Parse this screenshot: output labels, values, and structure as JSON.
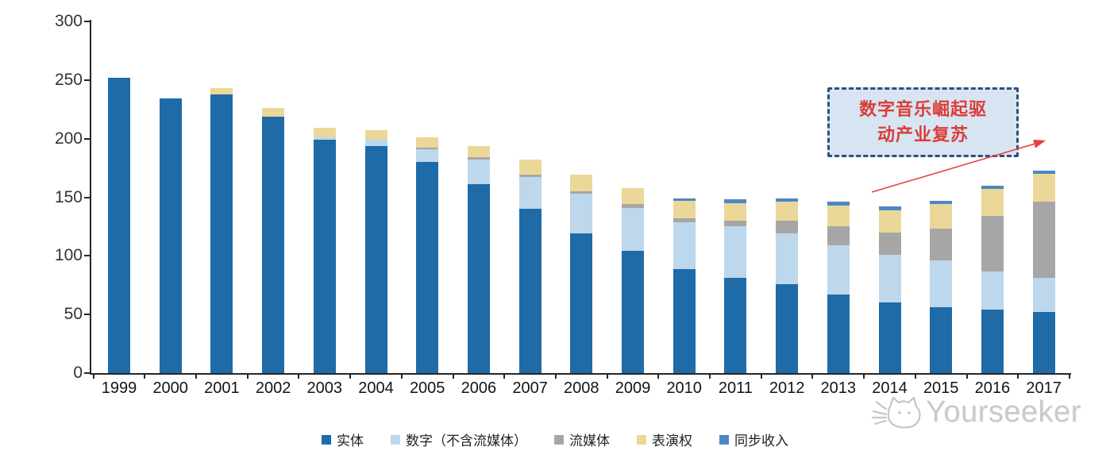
{
  "chart_data": {
    "type": "bar",
    "stacked": true,
    "title": "",
    "xlabel": "",
    "ylabel": "",
    "categories": [
      "1999",
      "2000",
      "2001",
      "2002",
      "2003",
      "2004",
      "2005",
      "2006",
      "2007",
      "2008",
      "2009",
      "2010",
      "2011",
      "2012",
      "2013",
      "2014",
      "2015",
      "2016",
      "2017"
    ],
    "series": [
      {
        "name": "实体",
        "color": "#1E6BA8",
        "values": [
          252,
          234,
          238,
          219,
          199,
          194,
          180,
          161,
          140,
          119,
          104,
          89,
          81,
          76,
          67,
          60,
          56,
          54,
          52
        ]
      },
      {
        "name": "数字（不含流媒体）",
        "color": "#BDD7EC",
        "values": [
          0,
          0,
          0,
          0,
          2,
          5,
          11,
          21,
          27,
          34,
          37,
          40,
          44,
          43,
          42,
          41,
          40,
          33,
          29
        ]
      },
      {
        "name": "流媒体",
        "color": "#A6A6A6",
        "values": [
          0,
          0,
          0,
          0,
          0,
          0,
          1,
          2,
          2,
          2,
          3,
          3,
          5,
          11,
          16,
          19,
          27,
          47,
          65
        ]
      },
      {
        "name": "表演权",
        "color": "#EBD898",
        "values": [
          0,
          0,
          5,
          7,
          8,
          8,
          9,
          10,
          13,
          14,
          14,
          15,
          15,
          16,
          18,
          19,
          21,
          23,
          24
        ]
      },
      {
        "name": "同步收入",
        "color": "#4E87C4",
        "values": [
          0,
          0,
          0,
          0,
          0,
          0,
          0,
          0,
          0,
          0,
          0,
          2,
          3,
          3,
          3,
          3,
          3,
          3,
          3
        ]
      }
    ],
    "ylim": [
      0,
      300
    ],
    "yticks": [
      0,
      50,
      100,
      150,
      200,
      250,
      300
    ],
    "grid": false,
    "legend_position": "bottom"
  },
  "annotation": {
    "lines": [
      "数字音乐崛起驱",
      "动产业复苏"
    ],
    "text_color": "#DC3C36",
    "box_fill": "#D7E5F3",
    "box_border": "#2F4E7E",
    "arrow_color": "#E8413C"
  },
  "watermark": {
    "icon": "cat-logo",
    "text": "Yourseeker",
    "color": "#C8C8C8"
  }
}
